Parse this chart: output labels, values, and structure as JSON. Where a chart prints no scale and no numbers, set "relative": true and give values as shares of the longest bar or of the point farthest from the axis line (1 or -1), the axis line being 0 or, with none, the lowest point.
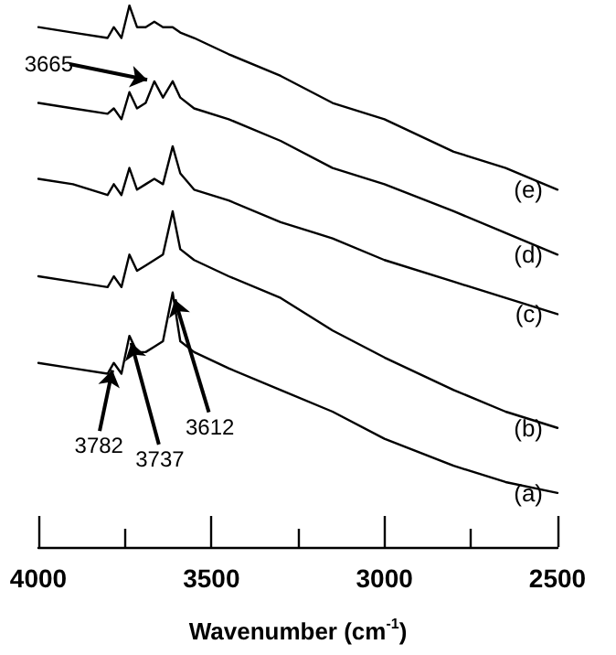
{
  "chart_data": {
    "type": "line",
    "relative": true,
    "xlabel": "Wavenumber (cm$^{-1}$)",
    "x": [
      4000,
      3900,
      3800,
      3782,
      3760,
      3737,
      3715,
      3690,
      3665,
      3640,
      3612,
      3590,
      3550,
      3450,
      3300,
      3150,
      3000,
      2800,
      2650,
      2500
    ],
    "xlim": [
      4000,
      2500
    ],
    "xticks": [
      4000,
      {
        "value": 3750,
        "label": null
      },
      3500,
      {
        "value": 3250,
        "label": null
      },
      3000,
      {
        "value": 2750,
        "label": null
      },
      2500
    ],
    "tick_labels": "x",
    "series": [
      {
        "name": "(a)",
        "color": "#000000",
        "values": [
          0.34,
          0.33,
          0.32,
          0.34,
          0.32,
          0.39,
          0.36,
          0.36,
          0.37,
          0.38,
          0.47,
          0.38,
          0.36,
          0.33,
          0.29,
          0.25,
          0.2,
          0.15,
          0.12,
          0.1
        ]
      },
      {
        "name": "(b)",
        "color": "#000000",
        "values": [
          0.5,
          0.49,
          0.48,
          0.5,
          0.48,
          0.54,
          0.51,
          0.52,
          0.53,
          0.54,
          0.62,
          0.55,
          0.53,
          0.5,
          0.46,
          0.4,
          0.35,
          0.29,
          0.25,
          0.22
        ]
      },
      {
        "name": "(c)",
        "color": "#000000",
        "values": [
          0.68,
          0.67,
          0.65,
          0.67,
          0.65,
          0.7,
          0.66,
          0.67,
          0.68,
          0.67,
          0.74,
          0.69,
          0.66,
          0.64,
          0.6,
          0.57,
          0.53,
          0.49,
          0.46,
          0.43
        ]
      },
      {
        "name": "(d)",
        "color": "#000000",
        "values": [
          0.82,
          0.81,
          0.8,
          0.81,
          0.79,
          0.84,
          0.81,
          0.82,
          0.86,
          0.83,
          0.86,
          0.83,
          0.81,
          0.79,
          0.75,
          0.7,
          0.67,
          0.62,
          0.58,
          0.54
        ]
      },
      {
        "name": "(e)",
        "color": "#000000",
        "values": [
          0.96,
          0.95,
          0.94,
          0.96,
          0.94,
          1,
          0.96,
          0.96,
          0.97,
          0.96,
          0.96,
          0.95,
          0.94,
          0.91,
          0.87,
          0.82,
          0.79,
          0.73,
          0.7,
          0.66
        ]
      }
    ],
    "annotations": [
      {
        "text": "3665",
        "x": 3665,
        "y": 0.86
      },
      {
        "text": "3782",
        "x": 3782,
        "y": 0.34
      },
      {
        "text": "3737",
        "x": 3737,
        "y": 0.39
      },
      {
        "text": "3612",
        "x": 3612,
        "y": 0.47
      }
    ]
  }
}
